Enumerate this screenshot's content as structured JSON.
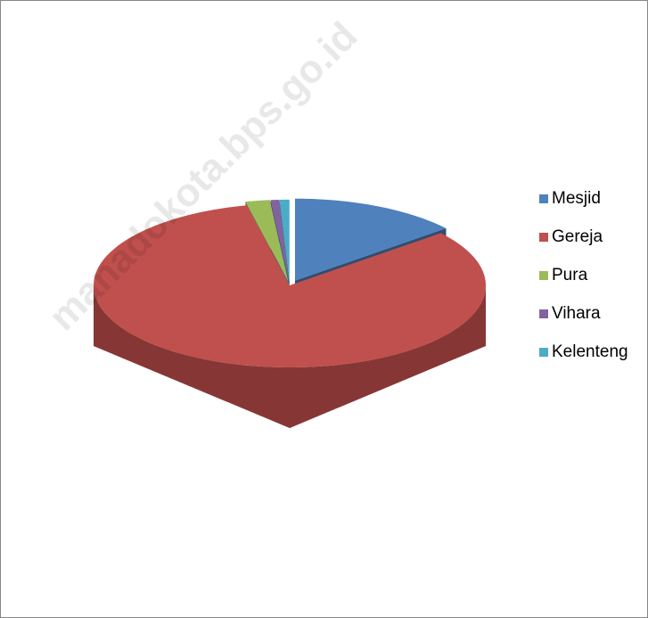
{
  "chart_data": {
    "type": "pie3d",
    "watermark": "manadokota.bps.go.id",
    "categories": [
      "Mesjid",
      "Gereja",
      "Pura",
      "Vihara",
      "Kelenteng"
    ],
    "values": [
      14,
      82.5,
      2,
      0.7,
      0.8
    ],
    "colors": [
      "#4f81bd",
      "#c0504d",
      "#9bbb59",
      "#8064a2",
      "#4bacc6"
    ],
    "legend": "right"
  }
}
